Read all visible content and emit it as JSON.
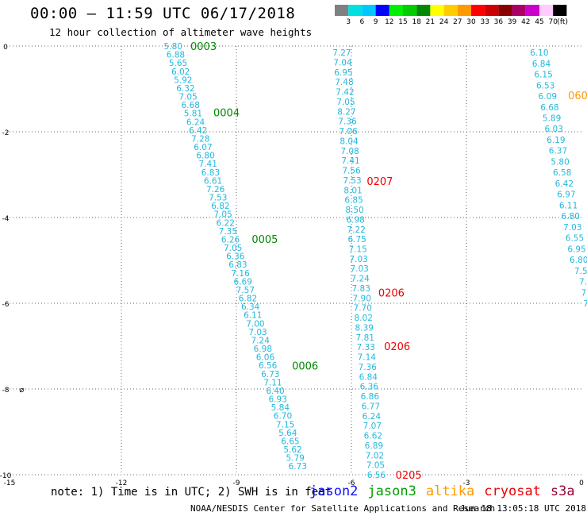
{
  "title": "00:00 – 11:59 UTC 06/17/2018",
  "subtitle": "12 hour collection of altimeter wave heights",
  "note": "note: 1) Time is in UTC; 2) SWH is in feet",
  "credit": "NOAA/NESDIS Center for Satellite Applications and Research",
  "timestamp": "Jun 18 13:05:18 UTC 2018",
  "satellites": [
    {
      "name": "jason2",
      "color": "#1010ff"
    },
    {
      "name": "jason3",
      "color": "#00a000"
    },
    {
      "name": "altika",
      "color": "#ff9900"
    },
    {
      "name": "cryosat",
      "color": "#ee0000"
    },
    {
      "name": "s3a",
      "color": "#990033"
    }
  ],
  "colorbar": {
    "unit": "(ft)",
    "bins": [
      {
        "label": "3",
        "color": "#808080"
      },
      {
        "label": "6",
        "color": "#00e0e0"
      },
      {
        "label": "9",
        "color": "#00c8ff"
      },
      {
        "label": "12",
        "color": "#0000ff"
      },
      {
        "label": "15",
        "color": "#00ee00"
      },
      {
        "label": "18",
        "color": "#00cc00"
      },
      {
        "label": "21",
        "color": "#008800"
      },
      {
        "label": "24",
        "color": "#ffff00"
      },
      {
        "label": "27",
        "color": "#ffcc00"
      },
      {
        "label": "30",
        "color": "#ff9900"
      },
      {
        "label": "33",
        "color": "#ff0000"
      },
      {
        "label": "36",
        "color": "#cc0000"
      },
      {
        "label": "39",
        "color": "#880000"
      },
      {
        "label": "42",
        "color": "#aa0066"
      },
      {
        "label": "45",
        "color": "#cc00cc"
      },
      {
        "label": "70",
        "color": "#ffccff"
      },
      {
        "label": "",
        "color": "#000000"
      }
    ]
  },
  "chart_data": {
    "type": "scatter",
    "xlim": [
      -15,
      0
    ],
    "ylim": [
      -10,
      0
    ],
    "xticks": [
      {
        "v": -15,
        "label": "-15"
      },
      {
        "v": -12,
        "label": "-12"
      },
      {
        "v": -9,
        "label": "-9"
      },
      {
        "v": -6,
        "label": "-6"
      },
      {
        "v": -3,
        "label": "-3"
      },
      {
        "v": 0,
        "label": "0"
      }
    ],
    "yticks": [
      {
        "v": 0,
        "label": "0"
      },
      {
        "v": -2,
        "label": "-2"
      },
      {
        "v": -4,
        "label": "-4"
      },
      {
        "v": -6,
        "label": "-6"
      },
      {
        "v": -8,
        "label": "-8"
      },
      {
        "v": -10,
        "label": "-10"
      }
    ],
    "grid": true,
    "tracks": [
      {
        "color": "#22b8dd",
        "x_start": -10.65,
        "y_start": 0.0,
        "x_end": -7.4,
        "y_end": -9.8,
        "values": [
          "5.80",
          "6.88",
          "5.65",
          "6.02",
          "5.92",
          "6.32",
          "7.05",
          "6.68",
          "5.81",
          "6.24",
          "6.42",
          "7.28",
          "6.07",
          "6.80",
          "7.41",
          "6.83",
          "6.61",
          "7.26",
          "7.53",
          "6.82",
          "7.05",
          "6.22",
          "7.35",
          "6.26",
          "7.05",
          "6.36",
          "6.83",
          "7.16",
          "6.69",
          "7.57",
          "6.82",
          "6.34",
          "6.11",
          "7.00",
          "7.03",
          "7.24",
          "6.98",
          "6.06",
          "6.56",
          "6.73",
          "7.11",
          "6.40",
          "6.93",
          "5.84",
          "6.70",
          "7.15",
          "5.64",
          "6.65",
          "5.62",
          "5.79",
          "6.73"
        ]
      },
      {
        "color": "#22b8dd",
        "x_start": -6.25,
        "y_start": -0.15,
        "x_end": -5.35,
        "y_end": -10.0,
        "values": [
          "7.27",
          "7.04",
          "6.95",
          "7.48",
          "7.42",
          "7.05",
          "8.27",
          "7.36",
          "7.06",
          "8.04",
          "7.08",
          "7.41",
          "7.56",
          "7.53",
          "8.01",
          "6.85",
          "8.50",
          "6.98",
          "7.22",
          "6.75",
          "7.15",
          "7.03",
          "7.03",
          "7.24",
          "7.83",
          "7.90",
          "7.70",
          "8.02",
          "8.39",
          "7.81",
          "7.33",
          "7.14",
          "7.36",
          "6.84",
          "6.36",
          "6.86",
          "6.77",
          "6.24",
          "7.07",
          "6.62",
          "6.89",
          "7.02",
          "7.05",
          "6.56"
        ]
      },
      {
        "color": "#22b8dd",
        "x_start": -1.1,
        "y_start": -0.15,
        "x_end": 0.15,
        "y_end": -6.0,
        "values": [
          "6.10",
          "6.84",
          "6.15",
          "6.53",
          "6.09",
          "6.68",
          "5.89",
          "6.03",
          "6.19",
          "6.37",
          "5.80",
          "6.58",
          "6.42",
          "6.97",
          "6.11",
          "6.80",
          "7.03",
          "6.55",
          "6.95",
          "6.80",
          "7.5",
          "7.",
          "7.",
          "7."
        ]
      }
    ],
    "pass_labels": [
      {
        "label": "0003",
        "x": -10.2,
        "y": 0.0,
        "color": "#008800"
      },
      {
        "label": "0004",
        "x": -9.6,
        "y": -1.55,
        "color": "#008800"
      },
      {
        "label": "0005",
        "x": -8.6,
        "y": -4.5,
        "color": "#008800"
      },
      {
        "label": "0006",
        "x": -7.55,
        "y": -7.45,
        "color": "#008800"
      },
      {
        "label": "0207",
        "x": -5.6,
        "y": -3.15,
        "color": "#ee0000"
      },
      {
        "label": "0206",
        "x": -5.3,
        "y": -5.75,
        "color": "#ee0000"
      },
      {
        "label": "0206",
        "x": -5.15,
        "y": -7.0,
        "color": "#ee0000"
      },
      {
        "label": "0205",
        "x": -4.85,
        "y": -10.0,
        "color": "#ee0000"
      },
      {
        "label": "060",
        "x": -0.35,
        "y": -1.15,
        "color": "#ff9900"
      }
    ],
    "marks": [
      {
        "label": "⌀",
        "x": -14.6,
        "y": -8.0,
        "color": "#000000"
      }
    ]
  }
}
